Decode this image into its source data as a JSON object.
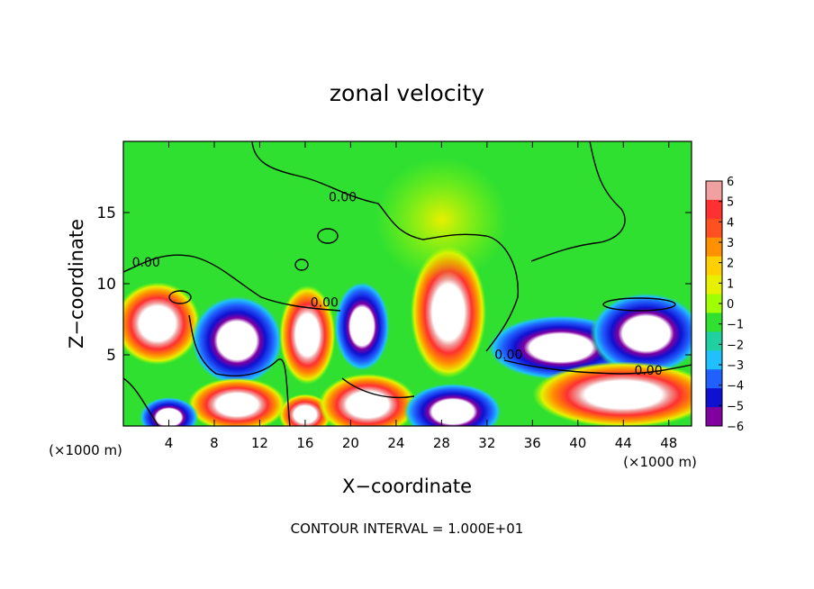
{
  "chart_data": {
    "type": "heatmap",
    "title": "zonal velocity",
    "xlabel": "X−coordinate",
    "ylabel": "Z−coordinate",
    "x_unit": "(×1000 m)",
    "x_unit_right": "(×1000 m)",
    "footer": "CONTOUR INTERVAL = 1.000E+01",
    "xlim": [
      0,
      50
    ],
    "ylim": [
      0,
      20
    ],
    "x_ticks": [
      4,
      8,
      12,
      16,
      20,
      24,
      28,
      32,
      36,
      40,
      44,
      48
    ],
    "y_ticks": [
      5,
      10,
      15
    ],
    "colorbar": {
      "ticks": [
        "6",
        "5",
        "4",
        "3",
        "2",
        "1",
        "0",
        "−1",
        "−2",
        "−3",
        "−4",
        "−5",
        "−6"
      ],
      "colors": [
        "#f0a0a0",
        "#ff3030",
        "#ff5020",
        "#ff9000",
        "#ffd000",
        "#e8f000",
        "#a0ff00",
        "#30e030",
        "#20d0a0",
        "#20c0ff",
        "#2060ff",
        "#1010d0",
        "#8000a0"
      ]
    },
    "contour_labels": [
      {
        "text": "0.00",
        "x": 19.3,
        "y": 15.8
      },
      {
        "text": "0.00",
        "x": 2.0,
        "y": 11.2
      },
      {
        "text": "0.00",
        "x": 17.7,
        "y": 8.4
      },
      {
        "text": "0.00",
        "x": 33.9,
        "y": 4.7
      },
      {
        "text": "0.00",
        "x": 46.2,
        "y": 3.6
      }
    ],
    "features": [
      {
        "sign": "positive",
        "x": 3.0,
        "y": 7.2,
        "rx": 2.6,
        "ry": 2.0
      },
      {
        "sign": "negative",
        "x": 10.0,
        "y": 6.0,
        "rx": 2.8,
        "ry": 2.2
      },
      {
        "sign": "positive",
        "x": 16.2,
        "y": 6.4,
        "rx": 1.7,
        "ry": 2.4
      },
      {
        "sign": "negative",
        "x": 21.0,
        "y": 7.0,
        "rx": 1.7,
        "ry": 2.2
      },
      {
        "sign": "positive",
        "x": 28.6,
        "y": 8.0,
        "rx": 2.3,
        "ry": 3.2
      },
      {
        "sign": "negative",
        "x": 38.5,
        "y": 5.5,
        "rx": 4.5,
        "ry": 1.6
      },
      {
        "sign": "negative",
        "x": 46.0,
        "y": 6.5,
        "rx": 3.4,
        "ry": 2.0
      },
      {
        "sign": "positive",
        "x": 44.0,
        "y": 2.2,
        "rx": 5.5,
        "ry": 1.6
      },
      {
        "sign": "positive",
        "x": 10.0,
        "y": 1.5,
        "rx": 3.0,
        "ry": 1.3
      },
      {
        "sign": "negative",
        "x": 4.0,
        "y": 0.6,
        "rx": 1.8,
        "ry": 1.0
      },
      {
        "sign": "positive",
        "x": 16.0,
        "y": 0.8,
        "rx": 1.6,
        "ry": 1.0
      },
      {
        "sign": "positive",
        "x": 21.5,
        "y": 1.5,
        "rx": 3.0,
        "ry": 1.5
      },
      {
        "sign": "negative",
        "x": 29.0,
        "y": 1.0,
        "rx": 3.0,
        "ry": 1.4
      },
      {
        "sign": "positive",
        "x": 28.0,
        "y": 14.5,
        "rx": 4.0,
        "ry": 3.0
      }
    ]
  }
}
